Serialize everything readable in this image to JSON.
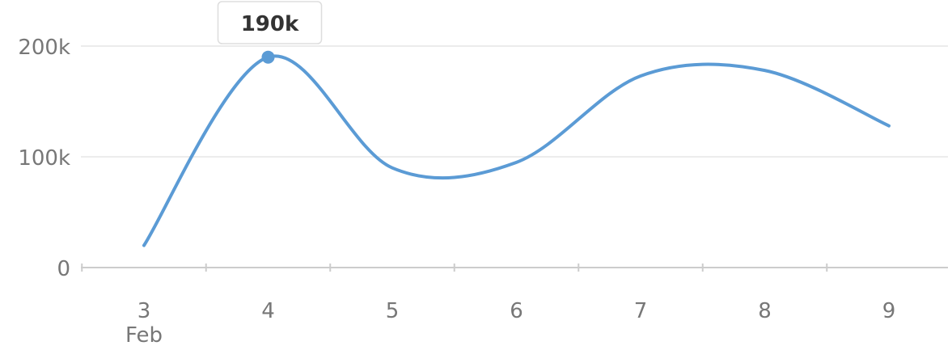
{
  "chart_data": {
    "type": "line",
    "x": [
      "3",
      "4",
      "5",
      "6",
      "7",
      "8",
      "9"
    ],
    "x_sublabels": [
      "Feb",
      "",
      "",
      "",
      "",
      "",
      ""
    ],
    "series": [
      {
        "values": [
          20000,
          190000,
          90000,
          95000,
          173000,
          178000,
          128000
        ],
        "color": "#5b9bd5"
      }
    ],
    "y_ticks": [
      {
        "value": 0,
        "label": "0"
      },
      {
        "value": 100000,
        "label": "100k"
      },
      {
        "value": 200000,
        "label": "200k"
      }
    ],
    "ylim": [
      0,
      200000
    ],
    "grid": true,
    "highlight": {
      "index": 1,
      "label": "190k"
    },
    "colors": {
      "line": "#5b9bd5",
      "grid": "#e6e6e6",
      "axis": "#cccccc",
      "tick_text": "#777777",
      "tooltip_border": "#dddddd"
    }
  }
}
